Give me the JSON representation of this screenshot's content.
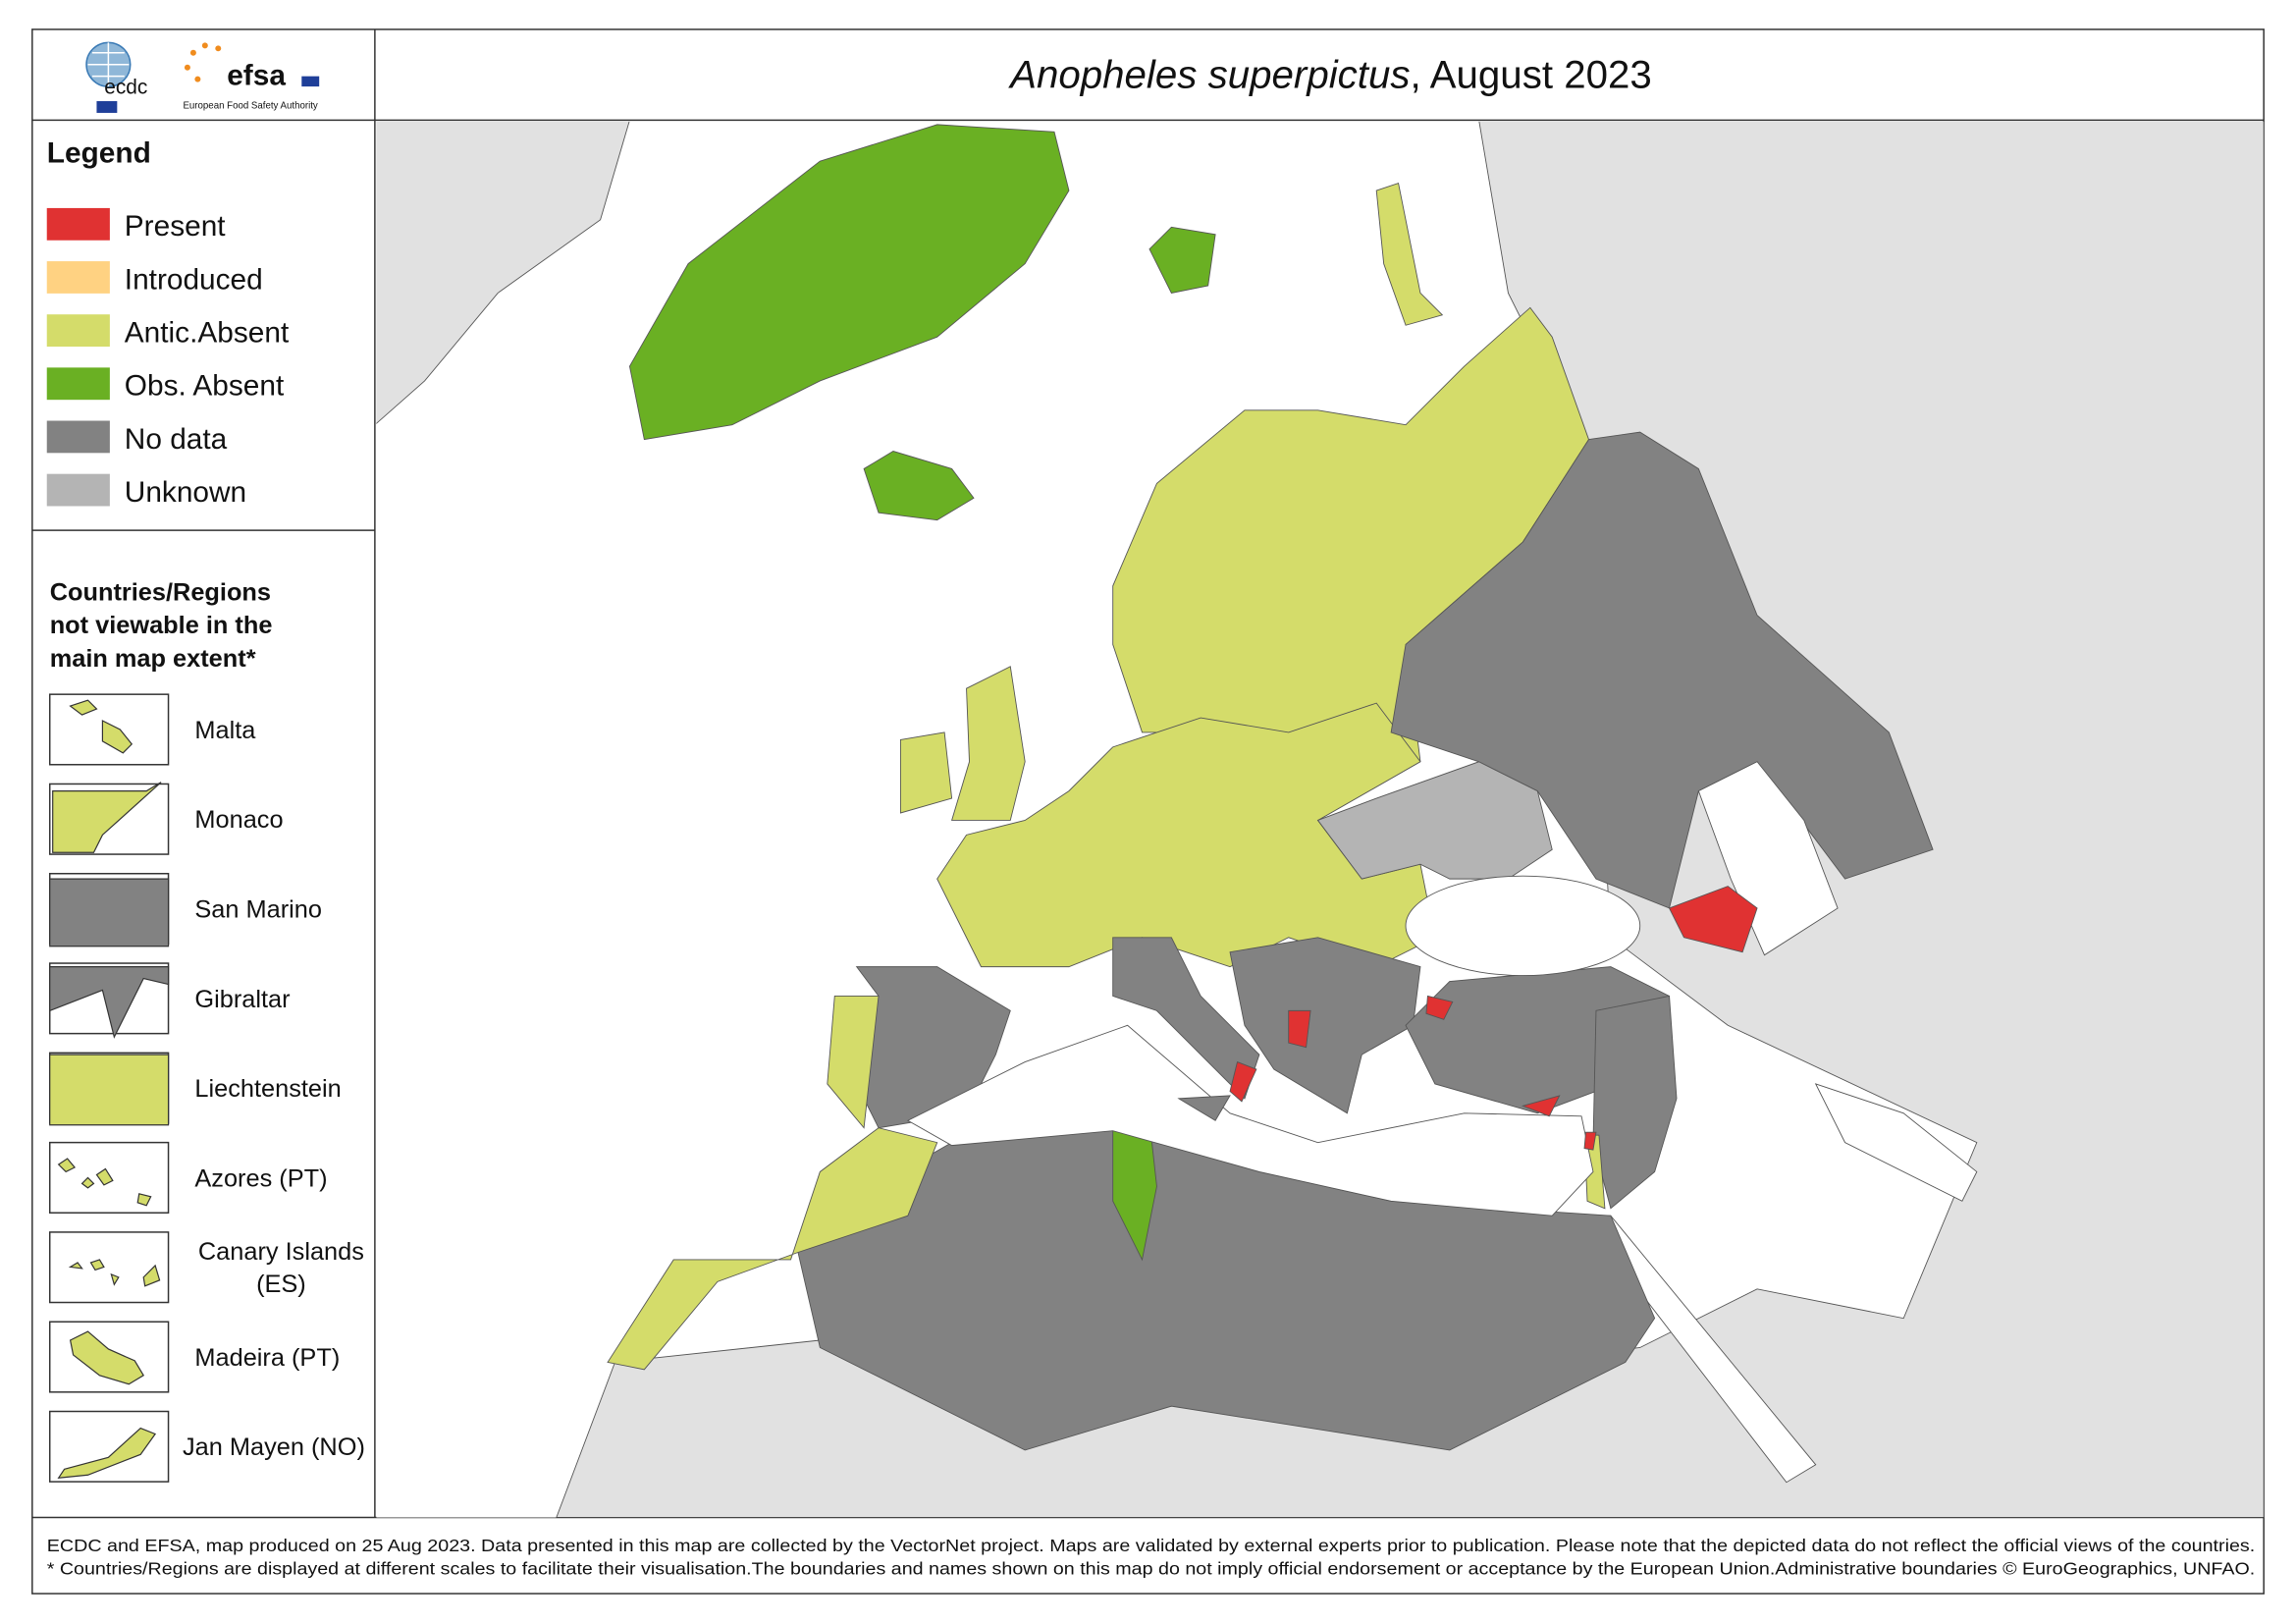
{
  "header": {
    "title_species": "Anopheles superpictus",
    "title_date": ", August 2023",
    "logo_ecdc": "ecdc",
    "logo_efsa": "efsa",
    "logo_efsa_caption": "European Food Safety Authority"
  },
  "legend": {
    "title": "Legend",
    "items": [
      {
        "label": "Present",
        "color": "#e03232"
      },
      {
        "label": "Introduced",
        "color": "#ffd282"
      },
      {
        "label": "Antic.Absent",
        "color": "#d4dc6a"
      },
      {
        "label": "Obs. Absent",
        "color": "#6ab023"
      },
      {
        "label": "No data",
        "color": "#828282"
      },
      {
        "label": "Unknown",
        "color": "#b4b4b4"
      }
    ]
  },
  "inset": {
    "title_lines": [
      "Countries/Regions",
      "not viewable in the",
      "main map extent*"
    ],
    "items": [
      [
        "Malta"
      ],
      [
        "Monaco"
      ],
      [
        "San Marino"
      ],
      [
        "Gibraltar"
      ],
      [
        "Liechtenstein"
      ],
      [
        "Azores (PT)"
      ],
      [
        "Canary Islands",
        "(ES)"
      ],
      [
        "Madeira (PT)"
      ],
      [
        "Jan Mayen (NO)"
      ]
    ]
  },
  "footer": {
    "lines": [
      "ECDC and EFSA, map produced on 25 Aug 2023. Data presented in this map are collected by the VectorNet project. Maps are validated by external experts prior to publication. Please note that the depicted data do not reflect the official views of the countries.",
      "* Countries/Regions are displayed at different scales to facilitate their visualisation.The boundaries and names shown on this map do not imply official endorsement or acceptance by the European Union.Administrative boundaries © EuroGeographics, UNFAO."
    ]
  }
}
